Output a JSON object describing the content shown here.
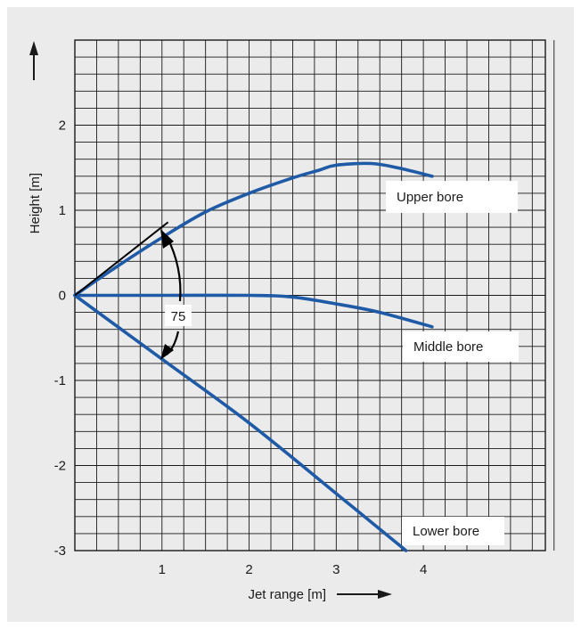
{
  "chart_data": {
    "type": "line",
    "xlabel": "Jet range [m]",
    "ylabel": "Height [m]",
    "xlim": [
      0,
      5.4
    ],
    "ylim": [
      -3,
      3
    ],
    "x_ticks": [
      "1",
      "2",
      "3",
      "4"
    ],
    "y_ticks": [
      "2",
      "1",
      "0",
      "-1",
      "-2",
      "-3"
    ],
    "grid": true,
    "series": [
      {
        "name": "Upper bore",
        "x": [
          0,
          0.5,
          1.0,
          1.5,
          2.0,
          2.5,
          2.8,
          3.0,
          3.4,
          3.7,
          4.1
        ],
        "y": [
          0,
          0.35,
          0.68,
          0.98,
          1.2,
          1.38,
          1.47,
          1.53,
          1.55,
          1.5,
          1.4
        ]
      },
      {
        "name": "Middle bore",
        "x": [
          0,
          1.0,
          2.0,
          2.5,
          3.0,
          3.5,
          4.1
        ],
        "y": [
          0,
          0,
          0,
          -0.02,
          -0.1,
          -0.2,
          -0.37
        ]
      },
      {
        "name": "Lower bore",
        "x": [
          0,
          1.0,
          2.0,
          3.0,
          3.8
        ],
        "y": [
          0,
          -0.75,
          -1.5,
          -2.33,
          -3.0
        ]
      }
    ],
    "annotations": {
      "angle_label": "75"
    },
    "colors": {
      "series": "#1f5aa6",
      "panel_background": "#ebebeb",
      "grid": "#1a1a1a"
    }
  }
}
